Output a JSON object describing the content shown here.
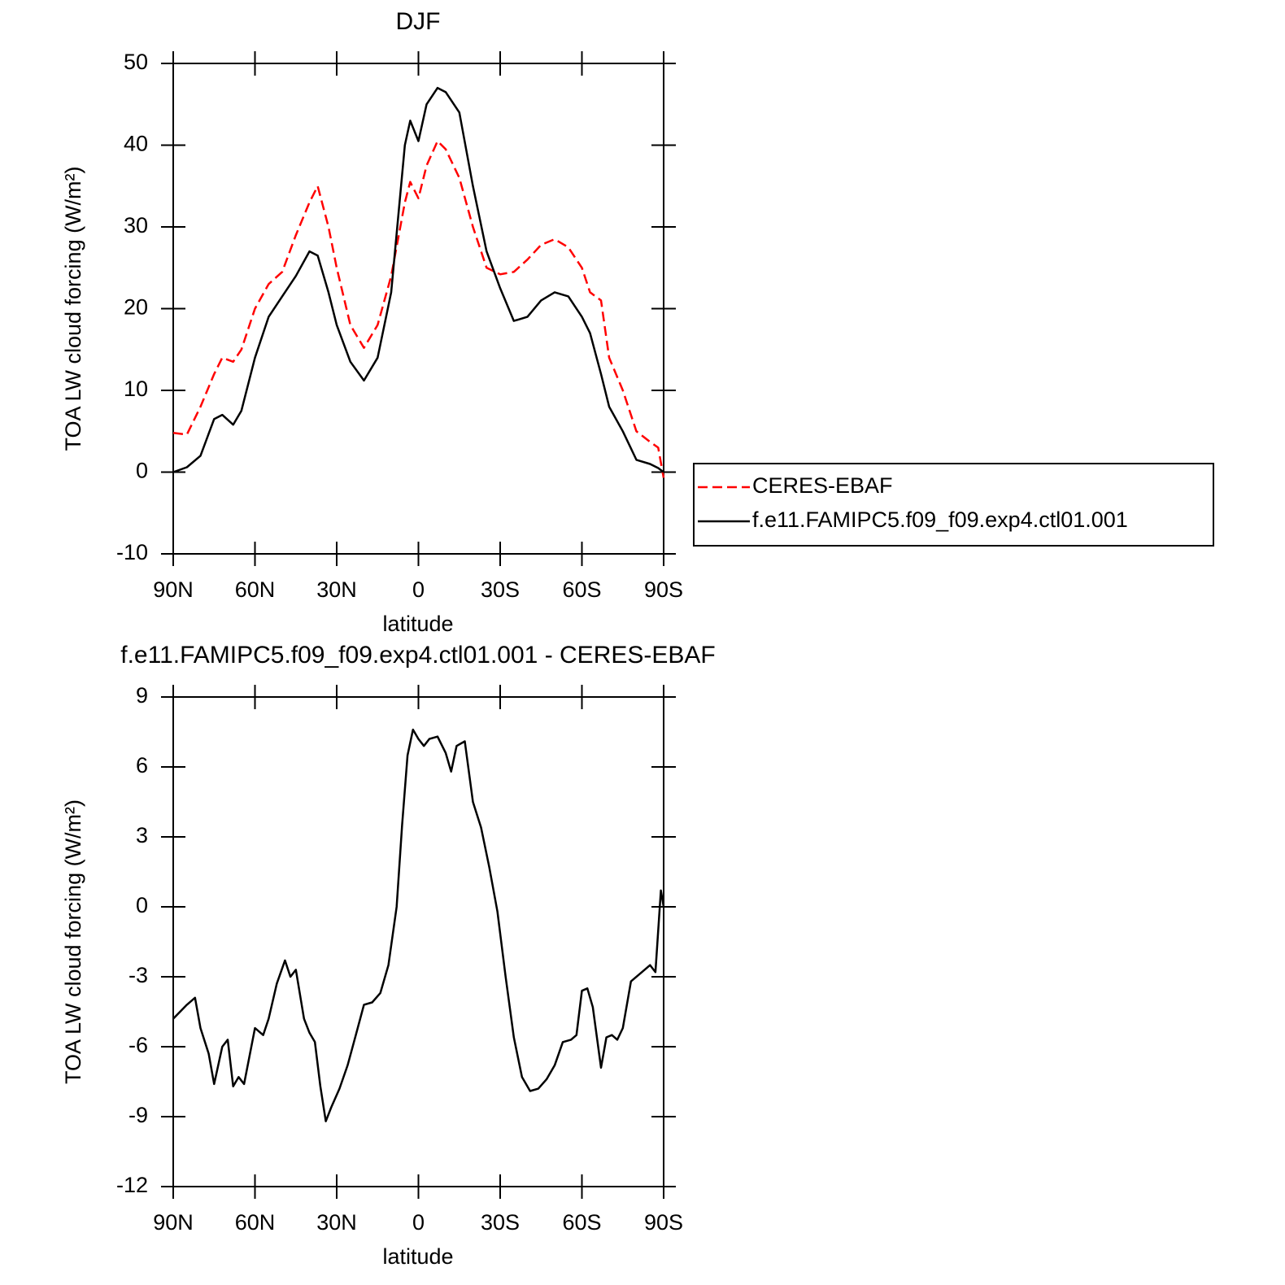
{
  "chart_data": [
    {
      "type": "line",
      "title": "DJF",
      "xlabel": "latitude",
      "ylabel": "TOA LW cloud forcing (W/m²)",
      "x": [
        90,
        85,
        80,
        75,
        72,
        68,
        65,
        60,
        55,
        50,
        45,
        40,
        37,
        33,
        30,
        25,
        20,
        15,
        10,
        5,
        3,
        0,
        -3,
        -7,
        -10,
        -15,
        -20,
        -25,
        -30,
        -35,
        -40,
        -45,
        -50,
        -55,
        -60,
        -63,
        -67,
        -70,
        -75,
        -80,
        -85,
        -88,
        -90
      ],
      "xlim": [
        90,
        -90
      ],
      "xticks": [
        {
          "value": 90,
          "label": "90N"
        },
        {
          "value": 60,
          "label": "60N"
        },
        {
          "value": 30,
          "label": "30N"
        },
        0,
        {
          "value": -30,
          "label": "30S"
        },
        {
          "value": -60,
          "label": "60S"
        },
        {
          "value": -90,
          "label": "90S"
        }
      ],
      "ylim": [
        -10,
        50
      ],
      "yticks": [
        -10,
        0,
        10,
        20,
        30,
        40,
        50
      ],
      "legend": "right",
      "series": [
        {
          "name": "CERES-EBAF",
          "color": "#ff0000",
          "dashed": true,
          "values": [
            4.8,
            4.6,
            8,
            12,
            14,
            13.5,
            15,
            20,
            23,
            24.5,
            29,
            33,
            35,
            30,
            25,
            18,
            15.2,
            18,
            24,
            33,
            35.5,
            33.5,
            37.5,
            40.5,
            39.5,
            36,
            30,
            25,
            24.2,
            24.5,
            26,
            27.8,
            28.5,
            27.5,
            25,
            22,
            21,
            14,
            10,
            5,
            3.7,
            3,
            -0.7
          ]
        },
        {
          "name": "f.e11.FAMIPC5.f09_f09.exp4.ctl01.001",
          "color": "#000000",
          "dashed": false,
          "values": [
            0,
            0.6,
            2,
            6.5,
            7,
            5.8,
            7.5,
            14,
            19,
            21.5,
            24,
            27,
            26.5,
            22,
            18,
            13.5,
            11.2,
            14,
            22,
            40,
            43,
            40.5,
            45,
            47,
            46.5,
            44,
            35,
            27,
            22.5,
            18.5,
            19,
            21,
            22,
            21.5,
            19,
            17,
            12,
            8,
            5,
            1.5,
            1,
            0.5,
            0
          ]
        }
      ]
    },
    {
      "type": "line",
      "title": "f.e11.FAMIPC5.f09_f09.exp4.ctl01.001 - CERES-EBAF",
      "xlabel": "latitude",
      "ylabel": "TOA LW cloud forcing (W/m²)",
      "x": [
        90,
        85,
        82,
        80,
        77,
        75,
        72,
        70,
        68,
        66,
        64,
        60,
        57,
        55,
        52,
        49,
        47,
        45,
        42,
        40,
        38,
        36,
        34,
        32,
        29,
        26,
        23,
        20,
        17,
        14,
        11,
        8,
        6,
        4,
        2,
        0,
        -2,
        -4,
        -7,
        -10,
        -12,
        -14,
        -17,
        -20,
        -23,
        -26,
        -29,
        -32,
        -35,
        -38,
        -41,
        -44,
        -47,
        -50,
        -53,
        -56,
        -58,
        -60,
        -62,
        -64,
        -67,
        -69,
        -71,
        -73,
        -75,
        -78,
        -82,
        -85,
        -87,
        -89,
        -90
      ],
      "xlim": [
        90,
        -90
      ],
      "xticks": [
        {
          "value": 90,
          "label": "90N"
        },
        {
          "value": 60,
          "label": "60N"
        },
        {
          "value": 30,
          "label": "30N"
        },
        0,
        {
          "value": -30,
          "label": "30S"
        },
        {
          "value": -60,
          "label": "60S"
        },
        {
          "value": -90,
          "label": "90S"
        }
      ],
      "ylim": [
        -12,
        9
      ],
      "yticks": [
        -12,
        -9,
        -6,
        -3,
        0,
        3,
        6,
        9
      ],
      "color": "#000000",
      "values": [
        -4.8,
        -4.2,
        -3.9,
        -5.2,
        -6.3,
        -7.6,
        -6.0,
        -5.7,
        -7.7,
        -7.3,
        -7.6,
        -5.2,
        -5.5,
        -4.8,
        -3.3,
        -2.3,
        -3.0,
        -2.7,
        -4.8,
        -5.4,
        -5.8,
        -7.7,
        -9.2,
        -8.6,
        -7.8,
        -6.8,
        -5.5,
        -4.2,
        -4.1,
        -3.7,
        -2.5,
        0,
        3.5,
        6.5,
        7.6,
        7.2,
        6.9,
        7.2,
        7.3,
        6.6,
        5.8,
        6.9,
        7.1,
        4.5,
        3.4,
        1.7,
        -0.2,
        -3.0,
        -5.6,
        -7.3,
        -7.9,
        -7.8,
        -7.4,
        -6.8,
        -5.8,
        -5.7,
        -5.5,
        -3.6,
        -3.5,
        -4.3,
        -6.9,
        -5.6,
        -5.5,
        -5.7,
        -5.2,
        -3.2,
        -2.8,
        -2.5,
        -2.8,
        0.7,
        0
      ]
    }
  ]
}
